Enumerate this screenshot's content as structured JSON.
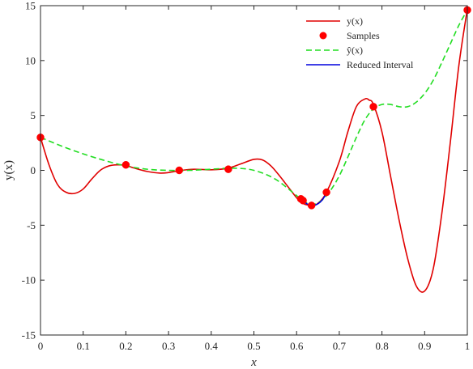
{
  "chart_data": {
    "type": "line",
    "title": "",
    "xlabel": "x",
    "ylabel": "y(x)",
    "xlim": [
      0,
      1
    ],
    "ylim": [
      -15,
      15
    ],
    "x_ticks": [
      0,
      0.1,
      0.2,
      0.3,
      0.4,
      0.5,
      0.6,
      0.7,
      0.8,
      0.9,
      1
    ],
    "x_tick_labels": [
      "0",
      "0.1",
      "0.2",
      "0.3",
      "0.4",
      "0.5",
      "0.6",
      "0.7",
      "0.8",
      "0.9",
      "1"
    ],
    "y_ticks": [
      -15,
      -10,
      -5,
      0,
      5,
      10,
      15
    ],
    "y_tick_labels": [
      "-15",
      "-10",
      "-5",
      "0",
      "5",
      "10",
      "15"
    ],
    "grid": false,
    "legend_position": "top-right",
    "series": [
      {
        "name": "y(x)",
        "style": "solid",
        "color": "#e00000",
        "x": [
          0,
          0.02,
          0.04,
          0.06,
          0.08,
          0.1,
          0.12,
          0.14,
          0.16,
          0.18,
          0.2,
          0.22,
          0.25,
          0.28,
          0.3,
          0.33,
          0.36,
          0.4,
          0.44,
          0.47,
          0.5,
          0.52,
          0.54,
          0.56,
          0.58,
          0.6,
          0.61,
          0.62,
          0.635,
          0.65,
          0.67,
          0.7,
          0.72,
          0.74,
          0.76,
          0.77,
          0.78,
          0.8,
          0.82,
          0.84,
          0.86,
          0.88,
          0.9,
          0.92,
          0.94,
          0.96,
          0.98,
          1.0
        ],
        "y": [
          3.0,
          0.5,
          -1.3,
          -2.0,
          -2.1,
          -1.7,
          -0.8,
          0.0,
          0.4,
          0.5,
          0.45,
          0.2,
          -0.1,
          -0.25,
          -0.2,
          0.0,
          0.1,
          0.05,
          0.2,
          0.6,
          1.0,
          0.95,
          0.4,
          -0.5,
          -1.5,
          -2.5,
          -2.9,
          -3.1,
          -3.2,
          -3.0,
          -2.0,
          0.8,
          3.5,
          5.8,
          6.5,
          6.4,
          6.0,
          3.5,
          -0.5,
          -4.5,
          -8.0,
          -10.5,
          -11.0,
          -9.0,
          -4.0,
          2.5,
          9.5,
          14.7
        ]
      },
      {
        "name": "ŷ(x)",
        "style": "dashed",
        "color": "#22dd22",
        "x": [
          0,
          0.05,
          0.1,
          0.15,
          0.2,
          0.25,
          0.3,
          0.35,
          0.4,
          0.45,
          0.5,
          0.55,
          0.6,
          0.62,
          0.64,
          0.66,
          0.68,
          0.7,
          0.72,
          0.74,
          0.76,
          0.78,
          0.8,
          0.82,
          0.84,
          0.86,
          0.88,
          0.9,
          0.92,
          0.94,
          0.96,
          0.98,
          1.0
        ],
        "y": [
          3.0,
          2.2,
          1.5,
          0.9,
          0.4,
          0.1,
          0.0,
          0.0,
          0.1,
          0.2,
          0.0,
          -0.8,
          -2.3,
          -2.9,
          -3.1,
          -2.7,
          -1.8,
          -0.5,
          1.2,
          3.0,
          4.6,
          5.6,
          6.0,
          6.0,
          5.8,
          5.8,
          6.2,
          7.0,
          8.2,
          9.8,
          11.5,
          13.2,
          14.6
        ]
      },
      {
        "name": "Reduced Interval",
        "style": "solid",
        "color": "#0000dd",
        "x": [
          0.61,
          0.62,
          0.63,
          0.64,
          0.65,
          0.66,
          0.67
        ],
        "y": [
          -2.6,
          -2.95,
          -3.15,
          -3.2,
          -3.05,
          -2.7,
          -2.1
        ]
      }
    ],
    "samples": {
      "name": "Samples",
      "color": "#ff0000",
      "x": [
        0.0,
        0.2,
        0.325,
        0.44,
        0.61,
        0.615,
        0.635,
        0.67,
        0.78,
        1.0
      ],
      "y": [
        3.0,
        0.5,
        0.0,
        0.1,
        -2.6,
        -2.75,
        -3.2,
        -2.0,
        5.8,
        14.6
      ]
    }
  }
}
